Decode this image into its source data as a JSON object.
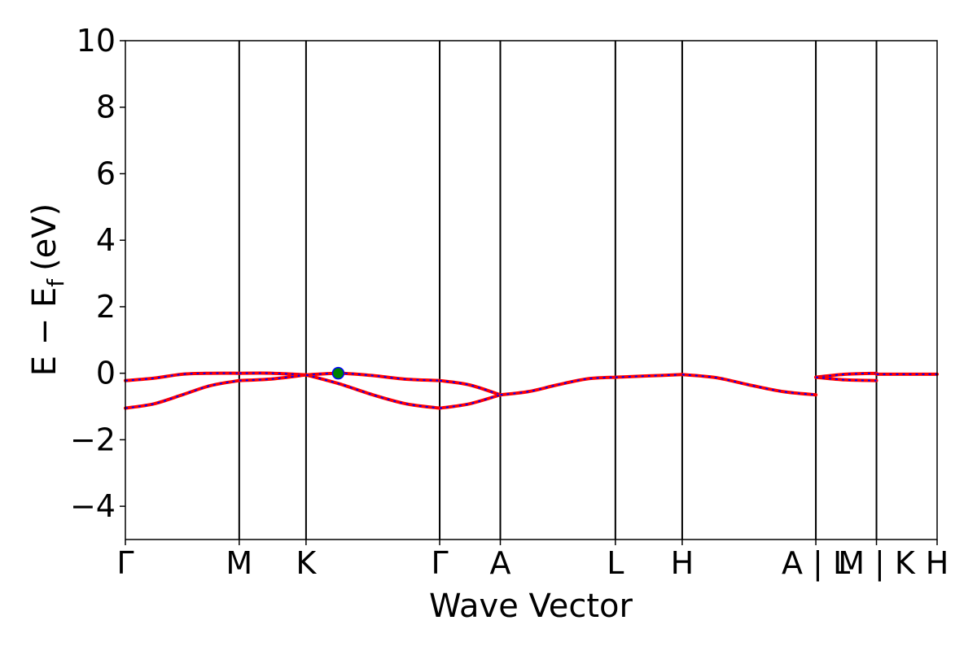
{
  "chart_data": {
    "type": "line",
    "title": "",
    "xlabel": "Wave Vector",
    "ylabel": "E − E",
    "ylabel_subscript": "f",
    "ylabel_unit": "(eV)",
    "ylim": [
      -5,
      10
    ],
    "yticks": [
      {
        "value": 10,
        "label": "10"
      },
      {
        "value": 8,
        "label": "8"
      },
      {
        "value": 6,
        "label": "6"
      },
      {
        "value": 4,
        "label": "4"
      },
      {
        "value": 2,
        "label": "2"
      },
      {
        "value": 0,
        "label": "0"
      },
      {
        "value": -2,
        "label": "−2"
      },
      {
        "value": -4,
        "label": "−4"
      }
    ],
    "xlim": [
      0,
      6.56
    ],
    "kpoints": [
      {
        "x": 0.0,
        "label": "Γ"
      },
      {
        "x": 0.92,
        "label": "M"
      },
      {
        "x": 1.46,
        "label": "K"
      },
      {
        "x": 2.54,
        "label": "Γ"
      },
      {
        "x": 3.03,
        "label": "A"
      },
      {
        "x": 3.96,
        "label": "L"
      },
      {
        "x": 4.5,
        "label": "H"
      },
      {
        "x": 5.58,
        "label": "A | L"
      },
      {
        "x": 6.07,
        "label": "M | K"
      },
      {
        "x": 6.56,
        "label": "H"
      }
    ],
    "line_style": {
      "color": "#ff0000",
      "dash_color": "#0000ff"
    },
    "series": [
      {
        "x": [
          0.0,
          0.23,
          0.46,
          0.69,
          0.92
        ],
        "y": [
          -0.22,
          -0.15,
          -0.03,
          0.0,
          0.0
        ]
      },
      {
        "x": [
          0.0,
          0.23,
          0.46,
          0.69,
          0.92
        ],
        "y": [
          -1.05,
          -0.92,
          -0.65,
          -0.37,
          -0.22
        ]
      },
      {
        "x": [
          0.92,
          1.19,
          1.46
        ],
        "y": [
          0.0,
          0.0,
          -0.05
        ]
      },
      {
        "x": [
          0.92,
          1.19,
          1.46
        ],
        "y": [
          -0.22,
          -0.17,
          -0.05
        ]
      },
      {
        "x": [
          1.46,
          1.73,
          2.0,
          2.27,
          2.54
        ],
        "y": [
          -0.05,
          0.0,
          -0.07,
          -0.18,
          -0.22
        ]
      },
      {
        "x": [
          1.46,
          1.73,
          2.0,
          2.27,
          2.54
        ],
        "y": [
          -0.05,
          -0.32,
          -0.65,
          -0.92,
          -1.05
        ]
      },
      {
        "x": [
          2.54,
          2.78,
          3.03
        ],
        "y": [
          -0.22,
          -0.35,
          -0.65
        ]
      },
      {
        "x": [
          2.54,
          2.78,
          3.03
        ],
        "y": [
          -1.05,
          -0.92,
          -0.65
        ]
      },
      {
        "x": [
          3.03,
          3.26,
          3.49,
          3.73,
          3.96
        ],
        "y": [
          -0.65,
          -0.55,
          -0.35,
          -0.17,
          -0.12
        ]
      },
      {
        "x": [
          3.96,
          4.23,
          4.5
        ],
        "y": [
          -0.12,
          -0.08,
          -0.04
        ]
      },
      {
        "x": [
          4.5,
          4.77,
          5.04,
          5.31,
          5.58
        ],
        "y": [
          -0.04,
          -0.13,
          -0.35,
          -0.55,
          -0.65
        ]
      },
      {
        "x": [
          5.58,
          5.82,
          6.07
        ],
        "y": [
          -0.12,
          -0.03,
          0.0
        ]
      },
      {
        "x": [
          5.58,
          5.82,
          6.07
        ],
        "y": [
          -0.12,
          -0.2,
          -0.22
        ]
      },
      {
        "x": [
          6.07,
          6.32,
          6.56
        ],
        "y": [
          -0.03,
          -0.03,
          -0.03
        ]
      }
    ],
    "marker": {
      "x": 1.72,
      "y": 0.0,
      "fill": "#008000",
      "edge": "#0000ff"
    },
    "grid": false,
    "legend": "none"
  }
}
